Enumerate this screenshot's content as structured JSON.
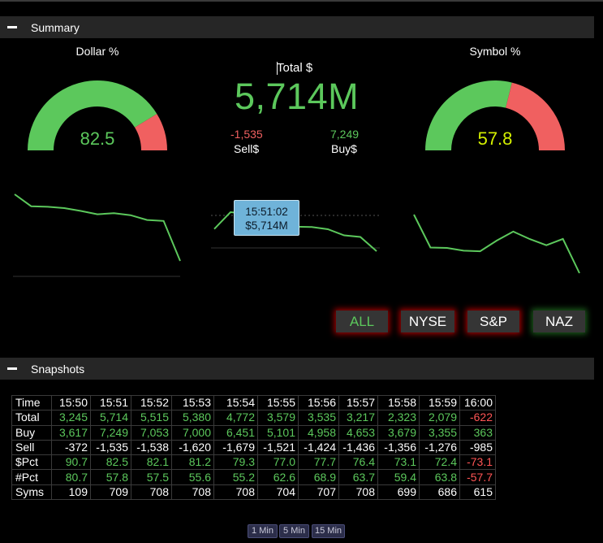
{
  "summary": {
    "header": "Summary",
    "dollar_gauge": {
      "label": "Dollar %",
      "value": "82.5",
      "fraction": 0.825,
      "value_color": "#5cc85c"
    },
    "symbol_gauge": {
      "label": "Symbol %",
      "value": "57.8",
      "fraction": 0.578,
      "value_color": "#d4f000"
    },
    "total": {
      "label": "Total $",
      "value": "5,714M"
    },
    "sell": {
      "value": "-1,535",
      "label": "Sell$"
    },
    "buy": {
      "value": "7,249",
      "label": "Buy$"
    },
    "tooltip": {
      "time": "15:51:02",
      "value": "$5,714M"
    },
    "filters": [
      {
        "label": "ALL",
        "color": "#5cc85c",
        "glow": "#a00000"
      },
      {
        "label": "NYSE",
        "color": "#ffffff",
        "glow": "#a00000"
      },
      {
        "label": "S&P",
        "color": "#ffffff",
        "glow": "#a00000"
      },
      {
        "label": "NAZ",
        "color": "#ffffff",
        "glow": "#1c5e1c"
      }
    ]
  },
  "sparklines": {
    "dollar_pct": [
      90.7,
      82.5,
      82.1,
      81.2,
      79.3,
      77.0,
      77.7,
      76.4,
      73.1,
      72.4,
      -73.1
    ],
    "total_usd": [
      3245,
      5714,
      5515,
      5380,
      4772,
      3579,
      3535,
      3217,
      2323,
      2079,
      -622
    ],
    "symbol_pct": [
      80.7,
      57.8,
      57.5,
      55.6,
      55.2,
      62.6,
      68.9,
      63.7,
      59.4,
      63.8,
      -57.7
    ]
  },
  "snapshots": {
    "header": "Snapshots",
    "rows": [
      {
        "label": "Time",
        "values": [
          "15:50",
          "15:51",
          "15:52",
          "15:53",
          "15:54",
          "15:55",
          "15:56",
          "15:57",
          "15:58",
          "15:59",
          "16:00"
        ],
        "colors": [
          "w",
          "w",
          "w",
          "w",
          "w",
          "w",
          "w",
          "w",
          "w",
          "w",
          "w"
        ]
      },
      {
        "label": "Total",
        "values": [
          "3,245",
          "5,714",
          "5,515",
          "5,380",
          "4,772",
          "3,579",
          "3,535",
          "3,217",
          "2,323",
          "2,079",
          "-622"
        ],
        "colors": [
          "g",
          "g",
          "g",
          "g",
          "g",
          "g",
          "g",
          "g",
          "g",
          "g",
          "r"
        ]
      },
      {
        "label": "Buy",
        "values": [
          "3,617",
          "7,249",
          "7,053",
          "7,000",
          "6,451",
          "5,101",
          "4,958",
          "4,653",
          "3,679",
          "3,355",
          "363"
        ],
        "colors": [
          "g",
          "g",
          "g",
          "g",
          "g",
          "g",
          "g",
          "g",
          "g",
          "g",
          "g"
        ]
      },
      {
        "label": "Sell",
        "values": [
          "-372",
          "-1,535",
          "-1,538",
          "-1,620",
          "-1,679",
          "-1,521",
          "-1,424",
          "-1,436",
          "-1,356",
          "-1,276",
          "-985"
        ],
        "colors": [
          "w",
          "w",
          "w",
          "w",
          "w",
          "w",
          "w",
          "w",
          "w",
          "w",
          "w"
        ]
      },
      {
        "label": "$Pct",
        "values": [
          "90.7",
          "82.5",
          "82.1",
          "81.2",
          "79.3",
          "77.0",
          "77.7",
          "76.4",
          "73.1",
          "72.4",
          "-73.1"
        ],
        "colors": [
          "g",
          "g",
          "g",
          "g",
          "g",
          "g",
          "g",
          "g",
          "g",
          "g",
          "r"
        ]
      },
      {
        "label": "#Pct",
        "values": [
          "80.7",
          "57.8",
          "57.5",
          "55.6",
          "55.2",
          "62.6",
          "68.9",
          "63.7",
          "59.4",
          "63.8",
          "-57.7"
        ],
        "colors": [
          "g",
          "g",
          "g",
          "g",
          "g",
          "g",
          "g",
          "g",
          "g",
          "g",
          "r"
        ]
      },
      {
        "label": "Syms",
        "values": [
          "109",
          "709",
          "708",
          "708",
          "708",
          "704",
          "707",
          "708",
          "699",
          "686",
          "615"
        ],
        "colors": [
          "w",
          "w",
          "w",
          "w",
          "w",
          "w",
          "w",
          "w",
          "w",
          "w",
          "w"
        ]
      }
    ]
  },
  "intervals": [
    "1 Min",
    "5 Min",
    "15 Min"
  ],
  "colors": {
    "positive": "#5cc85c",
    "negative": "#f06060",
    "header_bg": "#262626"
  }
}
